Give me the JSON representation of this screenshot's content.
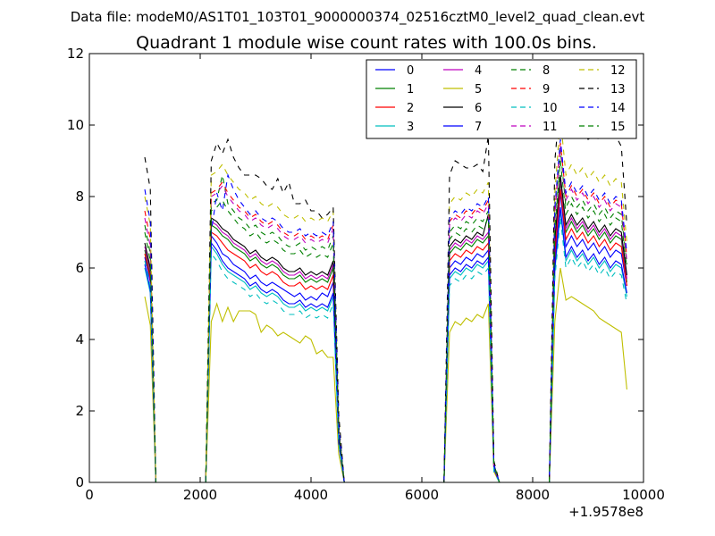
{
  "page": {
    "suptitle": "Data file: modeM0/AS1T01_103T01_9000000374_02516cztM0_level2_quad_clean.evt"
  },
  "chart_data": {
    "type": "line",
    "title": "Quadrant 1 module wise count rates with 100.0s bins.",
    "xlabel": "",
    "ylabel": "",
    "x_offset_label": "+1.9578e8",
    "xlim": [
      0,
      10000
    ],
    "ylim": [
      0,
      12
    ],
    "xticks": [
      0,
      2000,
      4000,
      6000,
      8000,
      10000
    ],
    "xtick_labels": [
      "0",
      "2000",
      "4000",
      "6000",
      "8000",
      "10000"
    ],
    "yticks": [
      0,
      2,
      4,
      6,
      8,
      10,
      12
    ],
    "ytick_labels": [
      "0",
      "2",
      "4",
      "6",
      "8",
      "10",
      "12"
    ],
    "legend_location": "top-right",
    "legend_columns": 4,
    "x": [
      1000,
      1100,
      1200,
      2100,
      2200,
      2300,
      2400,
      2500,
      2600,
      2700,
      2800,
      2900,
      3000,
      3100,
      3200,
      3300,
      3400,
      3500,
      3600,
      3700,
      3800,
      3900,
      4000,
      4100,
      4200,
      4300,
      4400,
      4500,
      4600,
      6400,
      6500,
      6600,
      6700,
      6800,
      6900,
      7000,
      7100,
      7200,
      7300,
      7400,
      8300,
      8400,
      8500,
      8600,
      8700,
      8800,
      8900,
      9000,
      9100,
      9200,
      9300,
      9400,
      9500,
      9600,
      9700
    ],
    "series": [
      {
        "name": "0",
        "color": "#0000ff",
        "dash": "solid",
        "values": [
          6.3,
          5.6,
          0,
          0,
          6.9,
          6.7,
          6.4,
          6.3,
          6.1,
          6.0,
          5.9,
          5.7,
          5.8,
          5.6,
          5.5,
          5.6,
          5.5,
          5.4,
          5.3,
          5.2,
          5.3,
          5.1,
          5.2,
          5.1,
          5.3,
          5.2,
          5.6,
          1.2,
          0,
          0,
          6.0,
          6.2,
          6.1,
          6.3,
          6.2,
          6.4,
          6.3,
          6.5,
          0.4,
          0,
          0,
          6.2,
          8.1,
          6.6,
          6.9,
          6.6,
          6.8,
          6.5,
          6.7,
          6.4,
          6.6,
          6.3,
          6.5,
          6.4,
          5.5
        ]
      },
      {
        "name": "1",
        "color": "#008000",
        "dash": "solid",
        "values": [
          6.5,
          5.8,
          0,
          0,
          7.2,
          7.1,
          6.9,
          6.8,
          6.6,
          6.5,
          6.4,
          6.2,
          6.3,
          6.1,
          6.0,
          6.1,
          6.0,
          5.8,
          5.7,
          5.7,
          5.8,
          5.6,
          5.7,
          5.6,
          5.7,
          5.6,
          6.0,
          1.3,
          0,
          0,
          6.4,
          6.6,
          6.5,
          6.7,
          6.6,
          6.8,
          6.7,
          6.9,
          0.4,
          0,
          0,
          6.6,
          8.4,
          7.0,
          7.3,
          7.0,
          7.2,
          6.9,
          7.1,
          6.8,
          7.0,
          6.7,
          6.9,
          6.8,
          5.6
        ]
      },
      {
        "name": "2",
        "color": "#ff0000",
        "dash": "solid",
        "values": [
          6.4,
          5.7,
          0,
          0,
          7.0,
          6.9,
          6.7,
          6.5,
          6.4,
          6.3,
          6.2,
          6.0,
          6.1,
          5.9,
          5.8,
          5.9,
          5.8,
          5.6,
          5.5,
          5.5,
          5.6,
          5.4,
          5.5,
          5.4,
          5.5,
          5.4,
          5.8,
          1.2,
          0,
          0,
          6.2,
          6.4,
          6.3,
          6.5,
          6.4,
          6.6,
          6.5,
          6.7,
          0.4,
          0,
          0,
          6.4,
          8.2,
          6.8,
          7.1,
          6.8,
          7.0,
          6.7,
          6.9,
          6.6,
          6.8,
          6.5,
          6.7,
          6.6,
          5.5
        ]
      },
      {
        "name": "3",
        "color": "#00bfbf",
        "dash": "solid",
        "values": [
          6.0,
          5.3,
          0,
          0,
          6.6,
          6.4,
          6.1,
          5.9,
          5.8,
          5.7,
          5.6,
          5.4,
          5.5,
          5.3,
          5.2,
          5.3,
          5.2,
          5.0,
          4.9,
          4.9,
          5.0,
          4.8,
          4.9,
          4.8,
          4.9,
          4.8,
          5.2,
          1.1,
          0,
          0,
          5.7,
          5.9,
          5.8,
          6.0,
          5.9,
          6.1,
          6.0,
          6.2,
          0.4,
          0,
          0,
          5.9,
          7.6,
          6.2,
          6.5,
          6.2,
          6.4,
          6.1,
          6.3,
          6.0,
          6.2,
          5.9,
          6.1,
          6.0,
          5.2
        ]
      },
      {
        "name": "4",
        "color": "#bf00bf",
        "dash": "solid",
        "values": [
          6.6,
          5.9,
          0,
          0,
          7.3,
          7.2,
          7.0,
          6.9,
          6.7,
          6.6,
          6.5,
          6.3,
          6.4,
          6.2,
          6.1,
          6.2,
          6.1,
          5.9,
          5.8,
          5.8,
          5.9,
          5.7,
          5.8,
          5.7,
          5.8,
          5.7,
          6.1,
          1.3,
          0,
          0,
          6.5,
          6.7,
          6.6,
          6.8,
          6.7,
          6.9,
          6.8,
          7.0,
          0.4,
          0,
          0,
          6.7,
          8.5,
          7.1,
          7.4,
          7.1,
          7.3,
          7.0,
          7.2,
          6.9,
          7.1,
          6.8,
          7.0,
          6.9,
          5.7
        ]
      },
      {
        "name": "5",
        "color": "#bfbf00",
        "dash": "solid",
        "values": [
          5.2,
          4.4,
          0,
          0,
          4.5,
          5.0,
          4.5,
          4.9,
          4.5,
          4.8,
          4.8,
          4.8,
          4.7,
          4.2,
          4.4,
          4.3,
          4.1,
          4.2,
          4.1,
          4.0,
          3.9,
          4.1,
          4.0,
          3.6,
          3.7,
          3.5,
          3.5,
          0.8,
          0,
          0,
          4.2,
          4.5,
          4.4,
          4.6,
          4.5,
          4.7,
          4.6,
          5.0,
          0.3,
          0,
          0,
          4.5,
          6.0,
          5.1,
          5.2,
          5.1,
          5.0,
          4.9,
          4.8,
          4.6,
          4.5,
          4.4,
          4.3,
          4.2,
          2.6
        ]
      },
      {
        "name": "6",
        "color": "#000000",
        "dash": "solid",
        "values": [
          6.7,
          6.0,
          0,
          0,
          7.4,
          7.3,
          7.1,
          7.0,
          6.8,
          6.7,
          6.6,
          6.4,
          6.5,
          6.3,
          6.2,
          6.3,
          6.2,
          6.0,
          5.9,
          5.9,
          6.0,
          5.8,
          5.9,
          5.8,
          5.9,
          5.8,
          6.2,
          1.3,
          0,
          0,
          6.6,
          6.8,
          6.7,
          6.9,
          6.8,
          7.0,
          6.9,
          7.5,
          0.4,
          0,
          0,
          6.8,
          8.6,
          7.2,
          7.5,
          7.2,
          7.4,
          7.1,
          7.3,
          7.0,
          7.2,
          6.9,
          7.1,
          7.0,
          5.8
        ]
      },
      {
        "name": "7",
        "color": "#0000ff",
        "dash": "solid",
        "values": [
          6.1,
          5.4,
          0,
          0,
          6.7,
          6.5,
          6.2,
          6.0,
          5.9,
          5.8,
          5.7,
          5.5,
          5.6,
          5.4,
          5.3,
          5.4,
          5.3,
          5.1,
          5.0,
          5.0,
          5.1,
          4.9,
          5.0,
          4.9,
          5.0,
          4.9,
          5.3,
          1.1,
          0,
          0,
          5.8,
          6.0,
          5.9,
          6.1,
          6.0,
          6.2,
          6.1,
          6.3,
          0.4,
          0,
          0,
          6.0,
          7.7,
          6.3,
          6.6,
          6.3,
          6.5,
          6.2,
          6.4,
          6.1,
          6.3,
          6.0,
          6.2,
          6.1,
          5.3
        ]
      },
      {
        "name": "8",
        "color": "#008000",
        "dash": "dashed",
        "values": [
          7.2,
          6.4,
          0,
          0,
          7.8,
          7.9,
          8.6,
          7.8,
          7.6,
          7.4,
          7.3,
          7.1,
          7.2,
          7.0,
          6.9,
          7.0,
          6.9,
          6.7,
          6.6,
          6.6,
          6.7,
          6.5,
          6.6,
          6.5,
          6.6,
          6.5,
          6.9,
          1.5,
          0,
          0,
          7.0,
          7.2,
          7.1,
          7.3,
          7.2,
          7.4,
          7.3,
          7.6,
          0.5,
          0,
          0,
          7.3,
          9.3,
          7.7,
          8.0,
          7.7,
          7.9,
          7.6,
          7.8,
          7.5,
          7.7,
          7.4,
          7.6,
          7.5,
          6.1
        ]
      },
      {
        "name": "9",
        "color": "#ff0000",
        "dash": "dashed",
        "values": [
          7.6,
          6.8,
          0,
          0,
          8.1,
          8.2,
          8.4,
          8.1,
          7.9,
          7.7,
          7.6,
          7.4,
          7.5,
          7.3,
          7.2,
          7.3,
          7.2,
          7.0,
          6.9,
          6.9,
          7.0,
          6.8,
          6.9,
          6.8,
          6.9,
          6.8,
          7.2,
          1.6,
          0,
          0,
          7.3,
          7.5,
          7.4,
          7.6,
          7.5,
          7.7,
          7.6,
          7.9,
          0.5,
          0,
          0,
          7.6,
          9.5,
          8.0,
          8.3,
          8.0,
          8.2,
          7.9,
          8.1,
          7.8,
          8.0,
          7.7,
          7.9,
          7.8,
          6.3
        ]
      },
      {
        "name": "10",
        "color": "#00bfbf",
        "dash": "dashed",
        "values": [
          6.2,
          5.5,
          0,
          0,
          6.4,
          6.2,
          5.9,
          5.7,
          5.6,
          5.5,
          5.4,
          5.2,
          5.3,
          5.1,
          5.0,
          5.1,
          5.0,
          4.8,
          4.7,
          4.7,
          4.8,
          4.6,
          4.7,
          4.6,
          4.7,
          4.6,
          5.0,
          1.1,
          0,
          0,
          5.5,
          5.7,
          5.6,
          5.8,
          5.7,
          5.9,
          5.8,
          6.0,
          0.3,
          0,
          0,
          5.7,
          7.4,
          6.0,
          6.3,
          6.0,
          6.2,
          5.9,
          6.1,
          5.8,
          6.0,
          5.7,
          5.9,
          5.8,
          5.0
        ]
      },
      {
        "name": "11",
        "color": "#bf00bf",
        "dash": "dashed",
        "values": [
          7.4,
          6.6,
          0,
          0,
          8.0,
          8.1,
          8.3,
          8.0,
          7.8,
          7.6,
          7.5,
          7.3,
          7.4,
          7.2,
          7.1,
          7.2,
          7.1,
          6.9,
          6.8,
          6.8,
          6.9,
          6.7,
          6.8,
          6.7,
          6.8,
          6.7,
          7.1,
          1.5,
          0,
          0,
          7.2,
          7.4,
          7.3,
          7.5,
          7.4,
          7.6,
          7.5,
          7.8,
          0.5,
          0,
          0,
          7.5,
          9.4,
          7.9,
          8.2,
          7.9,
          8.1,
          7.8,
          8.0,
          7.7,
          7.9,
          7.6,
          7.8,
          7.7,
          6.2
        ]
      },
      {
        "name": "12",
        "color": "#bfbf00",
        "dash": "dashed",
        "values": [
          8.0,
          7.2,
          0,
          0,
          8.6,
          8.7,
          8.9,
          8.6,
          8.4,
          8.2,
          8.1,
          7.9,
          8.0,
          7.8,
          7.7,
          7.8,
          7.7,
          7.5,
          7.4,
          7.4,
          7.5,
          7.3,
          7.4,
          7.3,
          7.4,
          7.3,
          7.6,
          1.7,
          0,
          0,
          7.8,
          8.0,
          7.9,
          8.1,
          8.0,
          8.2,
          8.1,
          8.4,
          0.5,
          0,
          0,
          8.1,
          10.2,
          8.6,
          8.9,
          8.6,
          8.8,
          8.5,
          8.7,
          8.4,
          8.6,
          8.3,
          8.5,
          8.4,
          6.7
        ]
      },
      {
        "name": "13",
        "color": "#000000",
        "dash": "dashed",
        "values": [
          9.1,
          8.2,
          0,
          0,
          9.0,
          9.5,
          9.2,
          9.6,
          9.1,
          8.8,
          8.6,
          8.6,
          8.6,
          8.5,
          8.3,
          8.2,
          8.5,
          8.1,
          8.4,
          7.8,
          7.8,
          7.9,
          7.6,
          7.6,
          7.4,
          7.5,
          7.7,
          1.9,
          0,
          0,
          8.6,
          9.0,
          8.9,
          8.8,
          8.8,
          8.9,
          8.7,
          9.7,
          0.6,
          0,
          0,
          9.0,
          10.8,
          10.0,
          10.1,
          9.9,
          9.8,
          9.6,
          9.7,
          9.6,
          9.9,
          9.6,
          9.7,
          9.4,
          7.2
        ]
      },
      {
        "name": "14",
        "color": "#0000ff",
        "dash": "dashed",
        "values": [
          8.2,
          7.3,
          0,
          0,
          7.0,
          8.1,
          7.6,
          8.6,
          8.2,
          7.9,
          7.7,
          7.5,
          7.6,
          7.4,
          7.3,
          7.4,
          7.3,
          7.1,
          7.0,
          7.0,
          7.1,
          6.9,
          7.0,
          6.9,
          7.0,
          6.9,
          7.3,
          1.6,
          0,
          0,
          7.4,
          7.6,
          7.5,
          7.7,
          7.6,
          7.8,
          7.7,
          8.0,
          0.5,
          0,
          0,
          7.7,
          9.6,
          8.1,
          8.4,
          8.1,
          8.3,
          8.0,
          8.2,
          7.9,
          8.1,
          7.8,
          8.0,
          7.9,
          6.4
        ]
      },
      {
        "name": "15",
        "color": "#008000",
        "dash": "dashed",
        "values": [
          7.0,
          6.2,
          0,
          0,
          7.6,
          7.7,
          7.9,
          7.6,
          7.4,
          7.2,
          7.1,
          6.9,
          7.0,
          6.8,
          6.7,
          6.8,
          6.7,
          6.5,
          6.4,
          6.4,
          6.5,
          6.3,
          6.4,
          6.3,
          6.4,
          6.3,
          6.7,
          1.4,
          0,
          0,
          6.8,
          7.0,
          6.9,
          7.1,
          7.0,
          7.2,
          7.1,
          7.4,
          0.5,
          0,
          0,
          7.1,
          9.0,
          7.5,
          7.8,
          7.5,
          7.7,
          7.4,
          7.6,
          7.3,
          7.5,
          7.2,
          7.4,
          7.3,
          6.0
        ]
      }
    ]
  }
}
